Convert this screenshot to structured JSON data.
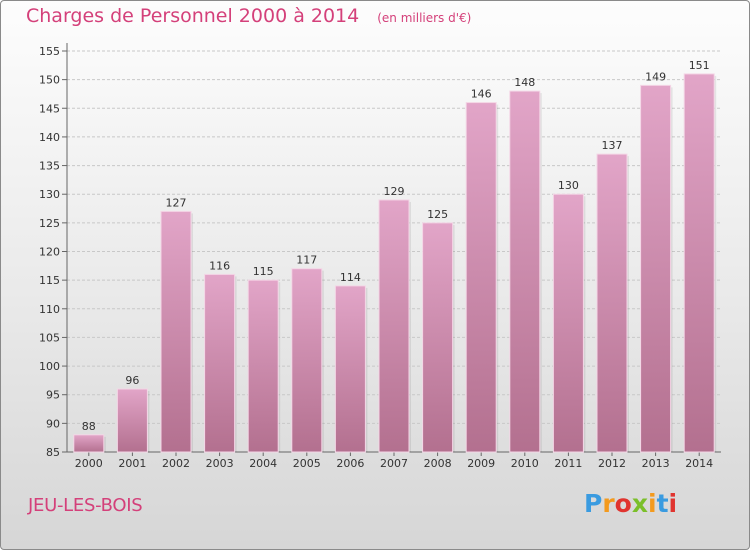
{
  "header": {
    "title": "Charges de Personnel 2000 à 2014",
    "subtitle": "(en milliers d'€)"
  },
  "footer": {
    "place": "JEU-LES-BOIS",
    "logo_letters": [
      "P",
      "r",
      "o",
      "x",
      "i",
      "t",
      "i"
    ],
    "logo_colors": [
      "#3a9be0",
      "#f39a1e",
      "#e0342f",
      "#7bbf2a",
      "#f39a1e",
      "#3a9be0",
      "#e0342f"
    ]
  },
  "colors": {
    "bar_top": "#e2a5c8",
    "bar_bottom": "#b3708f",
    "accent": "#d4407a"
  },
  "chart_data": {
    "type": "bar",
    "title": "Charges de Personnel 2000 à 2014",
    "subtitle": "(en milliers d'€)",
    "categories": [
      "2000",
      "2001",
      "2002",
      "2003",
      "2004",
      "2005",
      "2006",
      "2007",
      "2008",
      "2009",
      "2010",
      "2011",
      "2012",
      "2013",
      "2014"
    ],
    "values": [
      88,
      96,
      127,
      116,
      115,
      117,
      114,
      129,
      125,
      146,
      148,
      130,
      137,
      149,
      151
    ],
    "ylim": [
      85,
      155
    ],
    "yticks": [
      85,
      90,
      95,
      100,
      105,
      110,
      115,
      120,
      125,
      130,
      135,
      140,
      145,
      150,
      155
    ],
    "grid": true
  }
}
